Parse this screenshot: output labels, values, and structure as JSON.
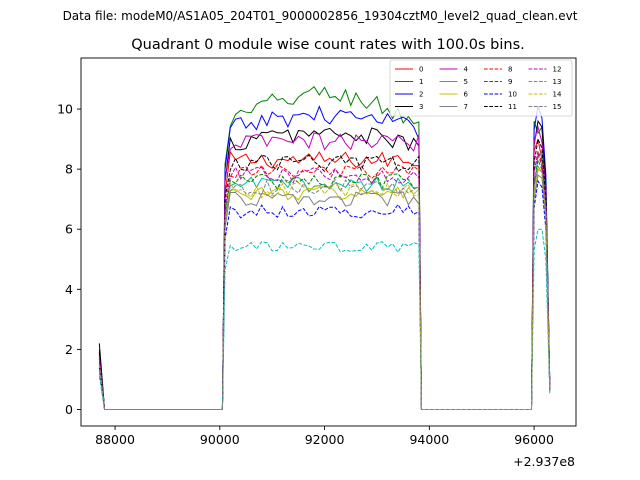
{
  "figure": {
    "suptitle": "Data file: modeM0/AS1A05_204T01_9000002856_19304cztM0_level2_quad_clean.evt",
    "title": "Quadrant 0 module wise count rates with 100.0s bins.",
    "offset_text": "+2.937e8"
  },
  "chart_data": {
    "type": "line",
    "title": "Quadrant 0 module wise count rates with 100.0s bins.",
    "xlabel": "",
    "ylabel": "",
    "x_offset": 293700000,
    "xlim": [
      87350,
      96800
    ],
    "ylim": [
      -0.55,
      11.7
    ],
    "xticks": [
      88000,
      90000,
      92000,
      94000,
      96000
    ],
    "xtick_labels": [
      "88000",
      "90000",
      "92000",
      "94000",
      "96000"
    ],
    "yticks": [
      0,
      2,
      4,
      6,
      8,
      10
    ],
    "ytick_labels": [
      "0",
      "2",
      "4",
      "6",
      "8",
      "10"
    ],
    "grid": false,
    "legend_position": "top-right",
    "legend_columns": 4,
    "x_segments": [
      {
        "start": 87700,
        "end": 87800
      },
      {
        "start": 87850,
        "end": 90050
      },
      {
        "start": 90100,
        "end": 93800
      },
      {
        "start": 93850,
        "end": 95950
      },
      {
        "start": 96000,
        "end": 96300
      }
    ],
    "series": [
      {
        "name": "0",
        "color": "#ff0000",
        "dash": "solid",
        "start": 1.9,
        "level": 8.3,
        "post": [
          8.6,
          9.0,
          8.3,
          6.8,
          0.8
        ]
      },
      {
        "name": "1",
        "color": "#008000",
        "dash": "solid",
        "start": 1.8,
        "level": 9.5,
        "trend": 1.0,
        "post": [
          9.6,
          9.2,
          9.4,
          7.5,
          0.7
        ]
      },
      {
        "name": "2",
        "color": "#0000ff",
        "dash": "solid",
        "start": 2.0,
        "level": 9.3,
        "trend": 0.5,
        "post": [
          9.3,
          10.1,
          9.7,
          7.8,
          0.8
        ]
      },
      {
        "name": "3",
        "color": "#000000",
        "dash": "solid",
        "start": 2.2,
        "level": 8.8,
        "trend": 0.4,
        "post": [
          8.8,
          9.6,
          9.4,
          7.4,
          0.8
        ]
      },
      {
        "name": "4",
        "color": "#c000c0",
        "dash": "solid",
        "start": 1.8,
        "level": 8.9,
        "post": [
          8.9,
          9.4,
          8.9,
          7.2,
          0.7
        ]
      },
      {
        "name": "5",
        "color": "#00c0a0",
        "dash": "solid",
        "start": 1.5,
        "level": 7.5,
        "post": [
          7.4,
          8.4,
          8.6,
          6.9,
          0.6
        ]
      },
      {
        "name": "6",
        "color": "#c0c000",
        "dash": "solid",
        "start": 1.4,
        "level": 7.2,
        "post": [
          7.0,
          8.0,
          8.0,
          6.6,
          0.6
        ]
      },
      {
        "name": "7",
        "color": "#808080",
        "dash": "solid",
        "start": 1.3,
        "level": 7.0,
        "post": [
          7.0,
          7.8,
          7.7,
          6.4,
          0.6
        ]
      },
      {
        "name": "8",
        "color": "#ff0000",
        "dash": "dashed",
        "start": 1.7,
        "level": 7.9,
        "post": [
          7.9,
          8.6,
          8.2,
          6.7,
          0.7
        ]
      },
      {
        "name": "9",
        "color": "#008000",
        "dash": "dashed",
        "start": 1.6,
        "level": 7.6,
        "post": [
          7.5,
          8.3,
          8.0,
          6.6,
          0.6
        ]
      },
      {
        "name": "10",
        "color": "#0000ff",
        "dash": "dashed",
        "start": 1.4,
        "level": 6.6,
        "post": [
          6.7,
          7.6,
          7.4,
          6.0,
          0.6
        ]
      },
      {
        "name": "11",
        "color": "#000000",
        "dash": "dashed",
        "start": 1.9,
        "level": 8.2,
        "post": [
          8.2,
          9.0,
          8.7,
          7.0,
          0.7
        ]
      },
      {
        "name": "12",
        "color": "#c000c0",
        "dash": "dashed",
        "start": 1.7,
        "level": 7.8,
        "post": [
          7.9,
          8.5,
          8.1,
          6.7,
          0.7
        ]
      },
      {
        "name": "13",
        "color": "#00c0c0",
        "dash": "dashed",
        "start": 1.1,
        "level": 5.4,
        "post": [
          5.3,
          6.0,
          6.0,
          5.0,
          0.5
        ]
      },
      {
        "name": "14",
        "color": "#c0c000",
        "dash": "dashed",
        "start": 1.5,
        "level": 7.3,
        "post": [
          7.2,
          8.0,
          7.9,
          6.5,
          0.6
        ]
      },
      {
        "name": "15",
        "color": "#808080",
        "dash": "dashed",
        "start": 1.5,
        "level": 7.4,
        "post": [
          7.4,
          8.1,
          7.9,
          6.5,
          0.6
        ]
      }
    ]
  }
}
